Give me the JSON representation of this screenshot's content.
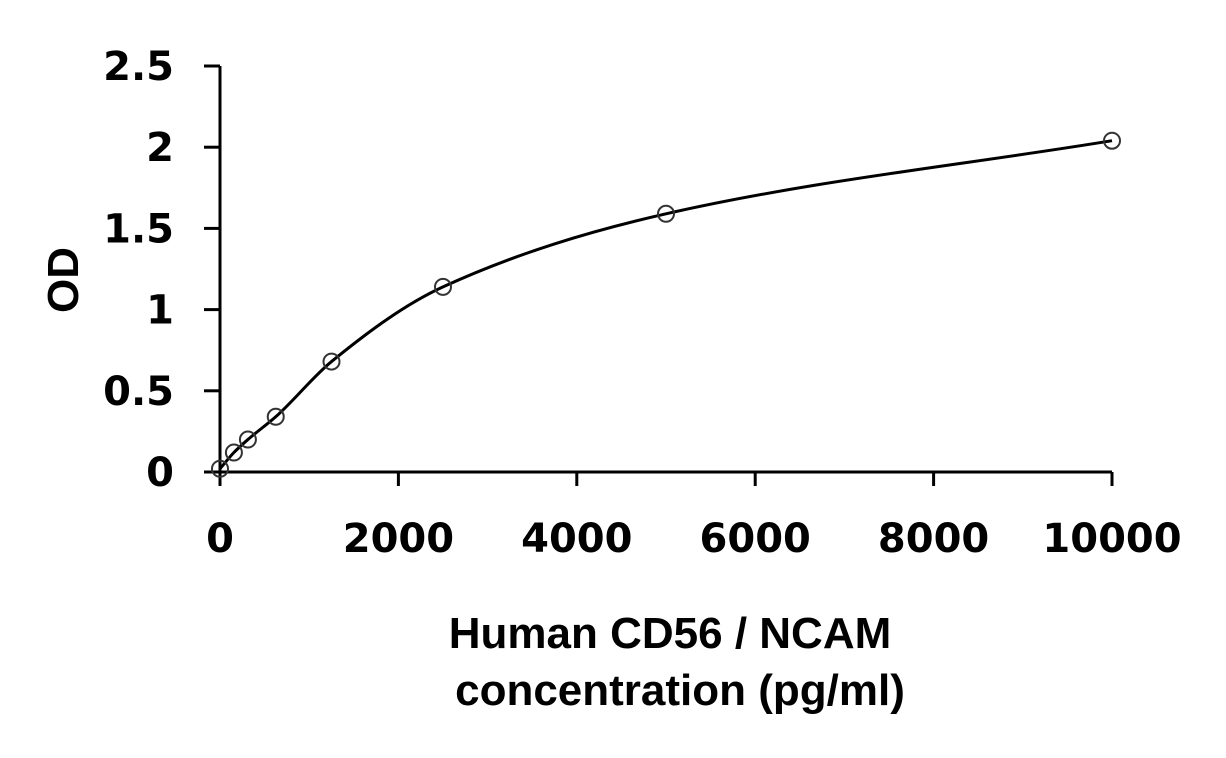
{
  "chart_data": {
    "type": "scatter",
    "xlabel_lines": [
      "Human CD56 / NCAM",
      "concentration (pg/ml)"
    ],
    "ylabel": "OD",
    "xlim": [
      0,
      10000
    ],
    "ylim": [
      0,
      2.5
    ],
    "xticks": [
      0,
      2000,
      4000,
      6000,
      8000,
      10000
    ],
    "yticks": [
      0,
      0.5,
      1,
      1.5,
      2,
      2.5
    ],
    "xtick_labels": [
      "0",
      "2000",
      "4000",
      "6000",
      "8000",
      "10000"
    ],
    "ytick_labels": [
      "0",
      "0.5",
      "1",
      "1.5",
      "2",
      "2.5"
    ],
    "grid": false,
    "series": [
      {
        "x": [
          0,
          156,
          313,
          625,
          1250,
          2500,
          5000,
          10000
        ],
        "y": [
          0.02,
          0.12,
          0.2,
          0.34,
          0.68,
          1.14,
          1.59,
          2.04
        ],
        "marker": "open-circle",
        "fit_line": "smooth",
        "color": "#000000"
      }
    ]
  }
}
